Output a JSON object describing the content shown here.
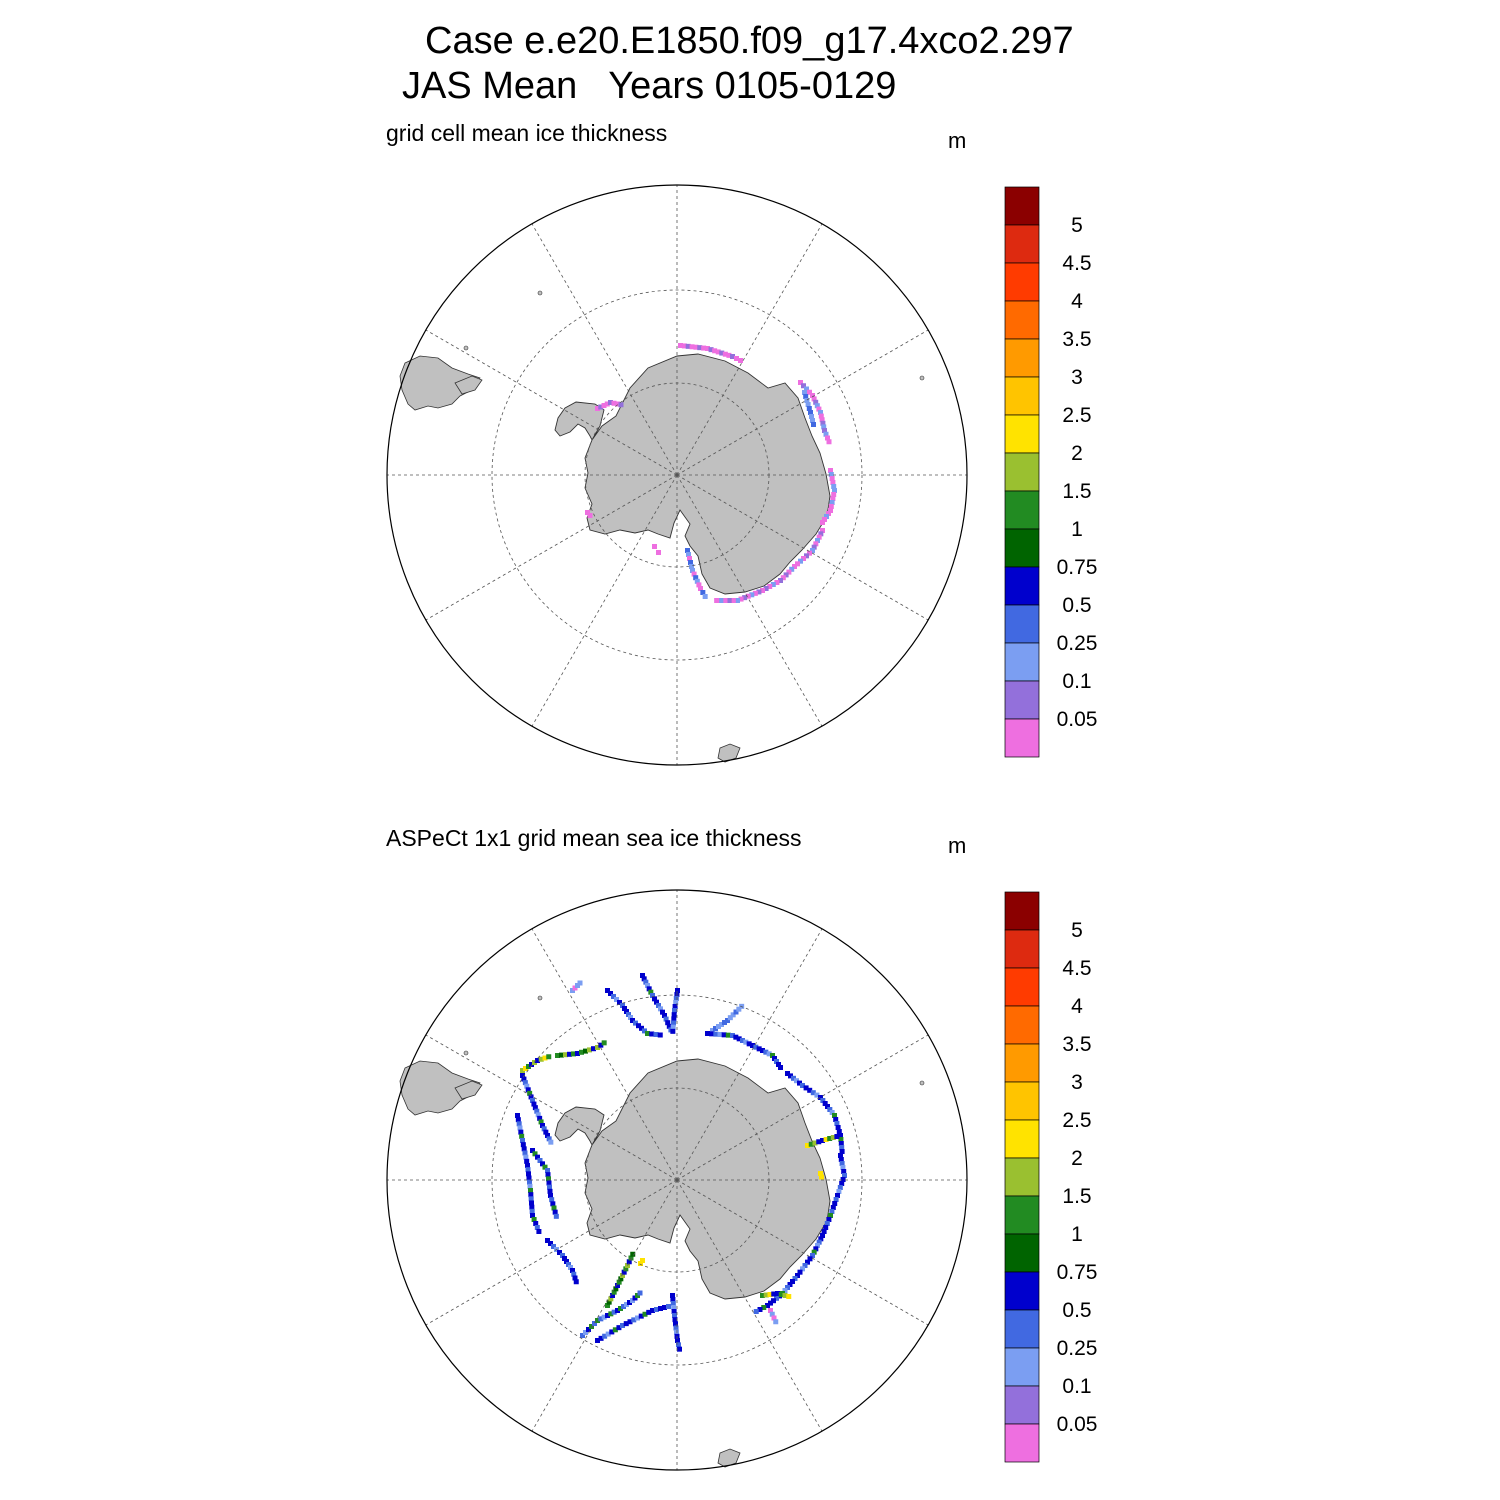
{
  "title": {
    "line1": "Case e.e20.E1850.f09_g17.4xco2.297",
    "line2": "JAS Mean   Years 0105-0129"
  },
  "panels": [
    {
      "subtitle": "grid cell mean ice thickness",
      "units": "m"
    },
    {
      "subtitle": "ASPeCt 1x1 grid mean sea ice thickness",
      "units": "m"
    }
  ],
  "colorbar": {
    "labels": [
      "5",
      "4.5",
      "4",
      "3.5",
      "3",
      "2.5",
      "2",
      "1.5",
      "1",
      "0.75",
      "0.5",
      "0.25",
      "0.1",
      "0.05"
    ],
    "colors_top_to_bottom": [
      "#8b0000",
      "#dd2a10",
      "#ff3b00",
      "#ff6a00",
      "#ff9a00",
      "#ffc400",
      "#ffe300",
      "#9ac030",
      "#228b22",
      "#006400",
      "#0000cd",
      "#4169e1",
      "#7b9ef2",
      "#9370db",
      "#ee6fe0"
    ]
  },
  "map_style": {
    "land_color": "#c0c0c0",
    "ocean_color": "#ffffff",
    "grid_line": "dashed"
  }
}
